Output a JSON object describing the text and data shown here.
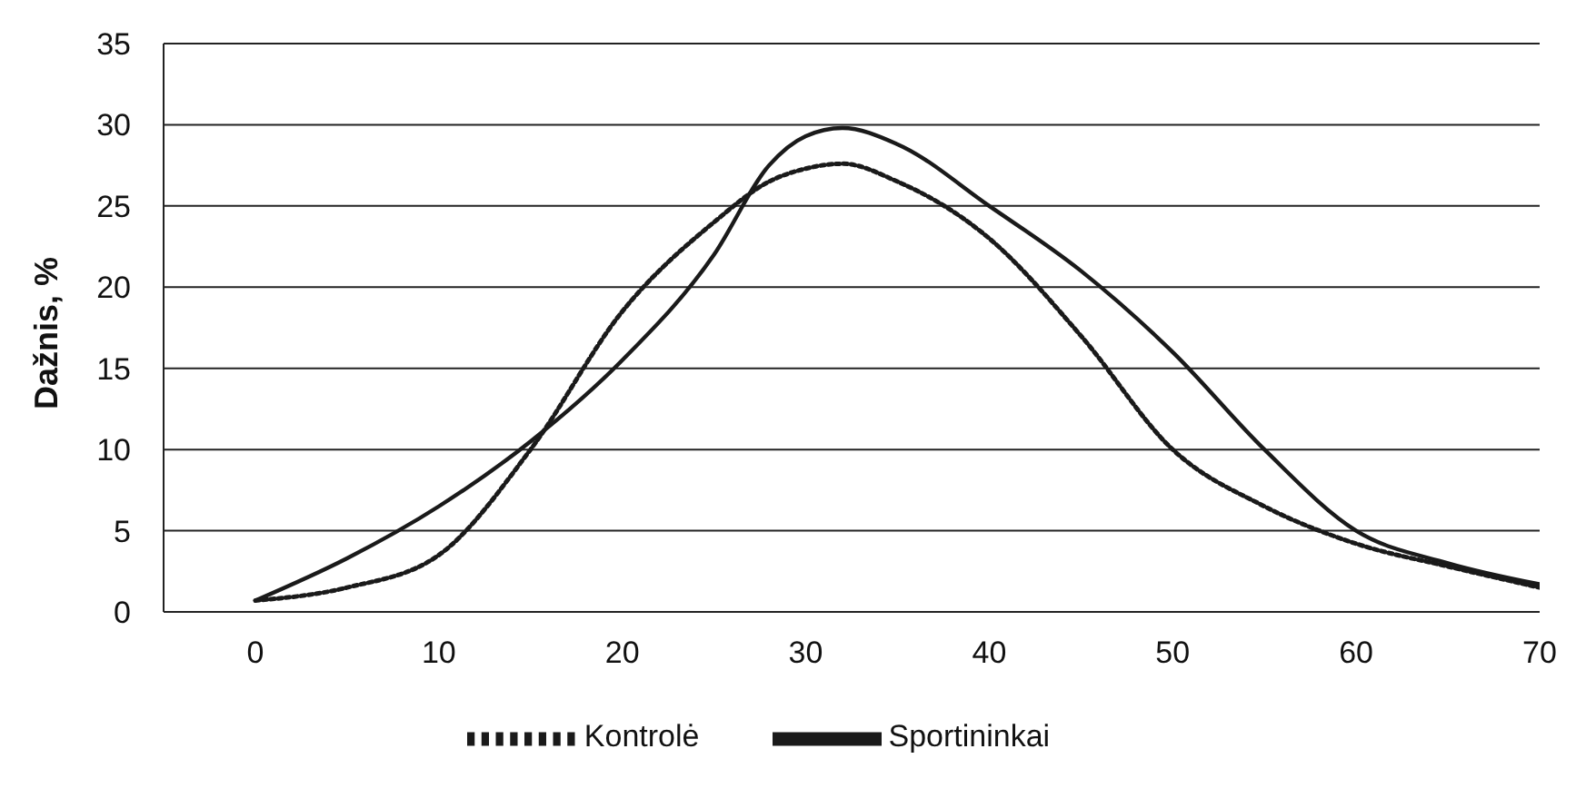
{
  "chart_data": {
    "type": "line",
    "ylabel": "Dažnis, %",
    "x": [
      0,
      5,
      10,
      15,
      20,
      25,
      28,
      30,
      32,
      35,
      40,
      45,
      50,
      55,
      60,
      65,
      70
    ],
    "series": [
      {
        "name": "Kontrolė",
        "color": "#1a1a1a",
        "line_style": "dotted",
        "values": [
          0.7,
          1.5,
          3.5,
          10,
          18.5,
          24,
          26.5,
          27.3,
          27.6,
          26.5,
          23,
          17,
          10,
          6.5,
          4.2,
          2.8,
          1.5
        ]
      },
      {
        "name": "Sportininkai",
        "color": "#1a1a1a",
        "line_style": "solid",
        "values": [
          0.7,
          3.3,
          6.5,
          10.5,
          15.5,
          22,
          27.5,
          29.3,
          29.8,
          28.8,
          25,
          21,
          16,
          10,
          5,
          3,
          1.7
        ]
      }
    ],
    "xlim": [
      -5,
      70
    ],
    "xticks": [
      0,
      10,
      20,
      30,
      40,
      50,
      60,
      70
    ],
    "ylim": [
      0,
      35
    ],
    "yticks": [
      0,
      5,
      10,
      15,
      20,
      25,
      30,
      35
    ],
    "grid": "y",
    "legend": "bottom",
    "marker": "none"
  }
}
